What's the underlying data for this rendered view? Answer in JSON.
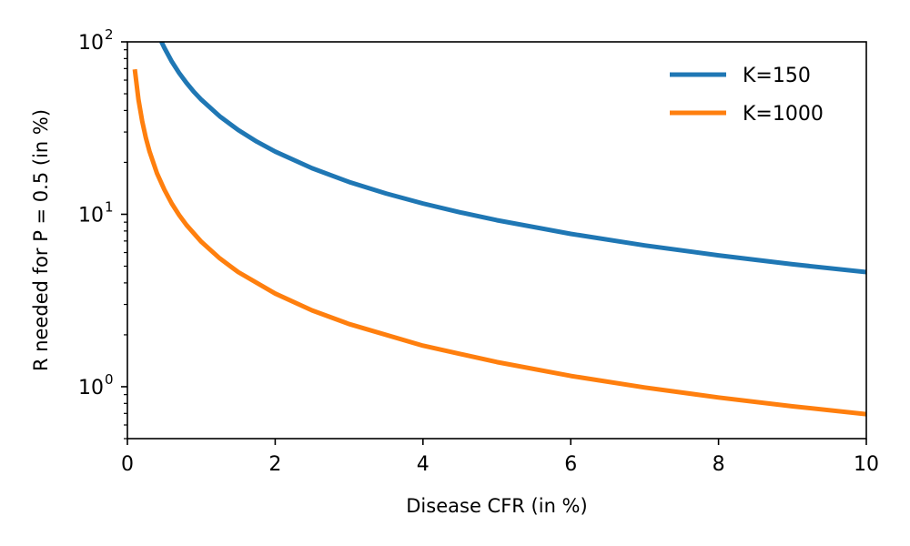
{
  "chart_data": {
    "type": "line",
    "xlabel": "Disease CFR (in %)",
    "ylabel": "R needed for P = 0.5 (in %)",
    "xlim": [
      0,
      10
    ],
    "ylim": [
      0.5,
      100
    ],
    "yscale": "log",
    "grid": false,
    "legend_position": "top-right",
    "x_ticks": [
      {
        "value": 0,
        "label": "0"
      },
      {
        "value": 2,
        "label": "2"
      },
      {
        "value": 4,
        "label": "4"
      },
      {
        "value": 6,
        "label": "6"
      },
      {
        "value": 8,
        "label": "8"
      },
      {
        "value": 10,
        "label": "10"
      }
    ],
    "y_ticks": [
      {
        "value": 1,
        "base": "10",
        "exp": "0"
      },
      {
        "value": 10,
        "base": "10",
        "exp": "1"
      },
      {
        "value": 100,
        "base": "10",
        "exp": "2"
      }
    ],
    "y_minor_ticks": [
      0.5,
      0.6,
      0.7,
      0.8,
      0.9,
      2,
      3,
      4,
      5,
      6,
      7,
      8,
      9,
      20,
      30,
      40,
      50,
      60,
      70,
      80,
      90
    ],
    "series": [
      {
        "name": "K=150",
        "color": "#1f77b4",
        "x": [
          0.46,
          0.5,
          0.6,
          0.7,
          0.8,
          0.9,
          1.0,
          1.25,
          1.5,
          1.75,
          2.0,
          2.5,
          3.0,
          3.5,
          4.0,
          4.5,
          5.0,
          6.0,
          7.0,
          8.0,
          9.0,
          10.0
        ],
        "y": [
          100.3,
          92.4,
          77.0,
          66.0,
          57.8,
          51.3,
          46.2,
          37.0,
          30.8,
          26.4,
          23.1,
          18.5,
          15.4,
          13.2,
          11.55,
          10.27,
          9.24,
          7.7,
          6.6,
          5.78,
          5.13,
          4.62
        ]
      },
      {
        "name": "K=1000",
        "color": "#ff7f0e",
        "x": [
          0.1,
          0.15,
          0.2,
          0.25,
          0.3,
          0.4,
          0.5,
          0.6,
          0.7,
          0.8,
          1.0,
          1.25,
          1.5,
          2.0,
          2.5,
          3.0,
          4.0,
          5.0,
          6.0,
          7.0,
          8.0,
          9.0,
          10.0
        ],
        "y": [
          69.3,
          46.2,
          34.7,
          27.7,
          23.1,
          17.3,
          13.9,
          11.55,
          9.9,
          8.66,
          6.93,
          5.55,
          4.62,
          3.47,
          2.77,
          2.31,
          1.73,
          1.39,
          1.155,
          0.99,
          0.866,
          0.77,
          0.693
        ]
      }
    ]
  }
}
